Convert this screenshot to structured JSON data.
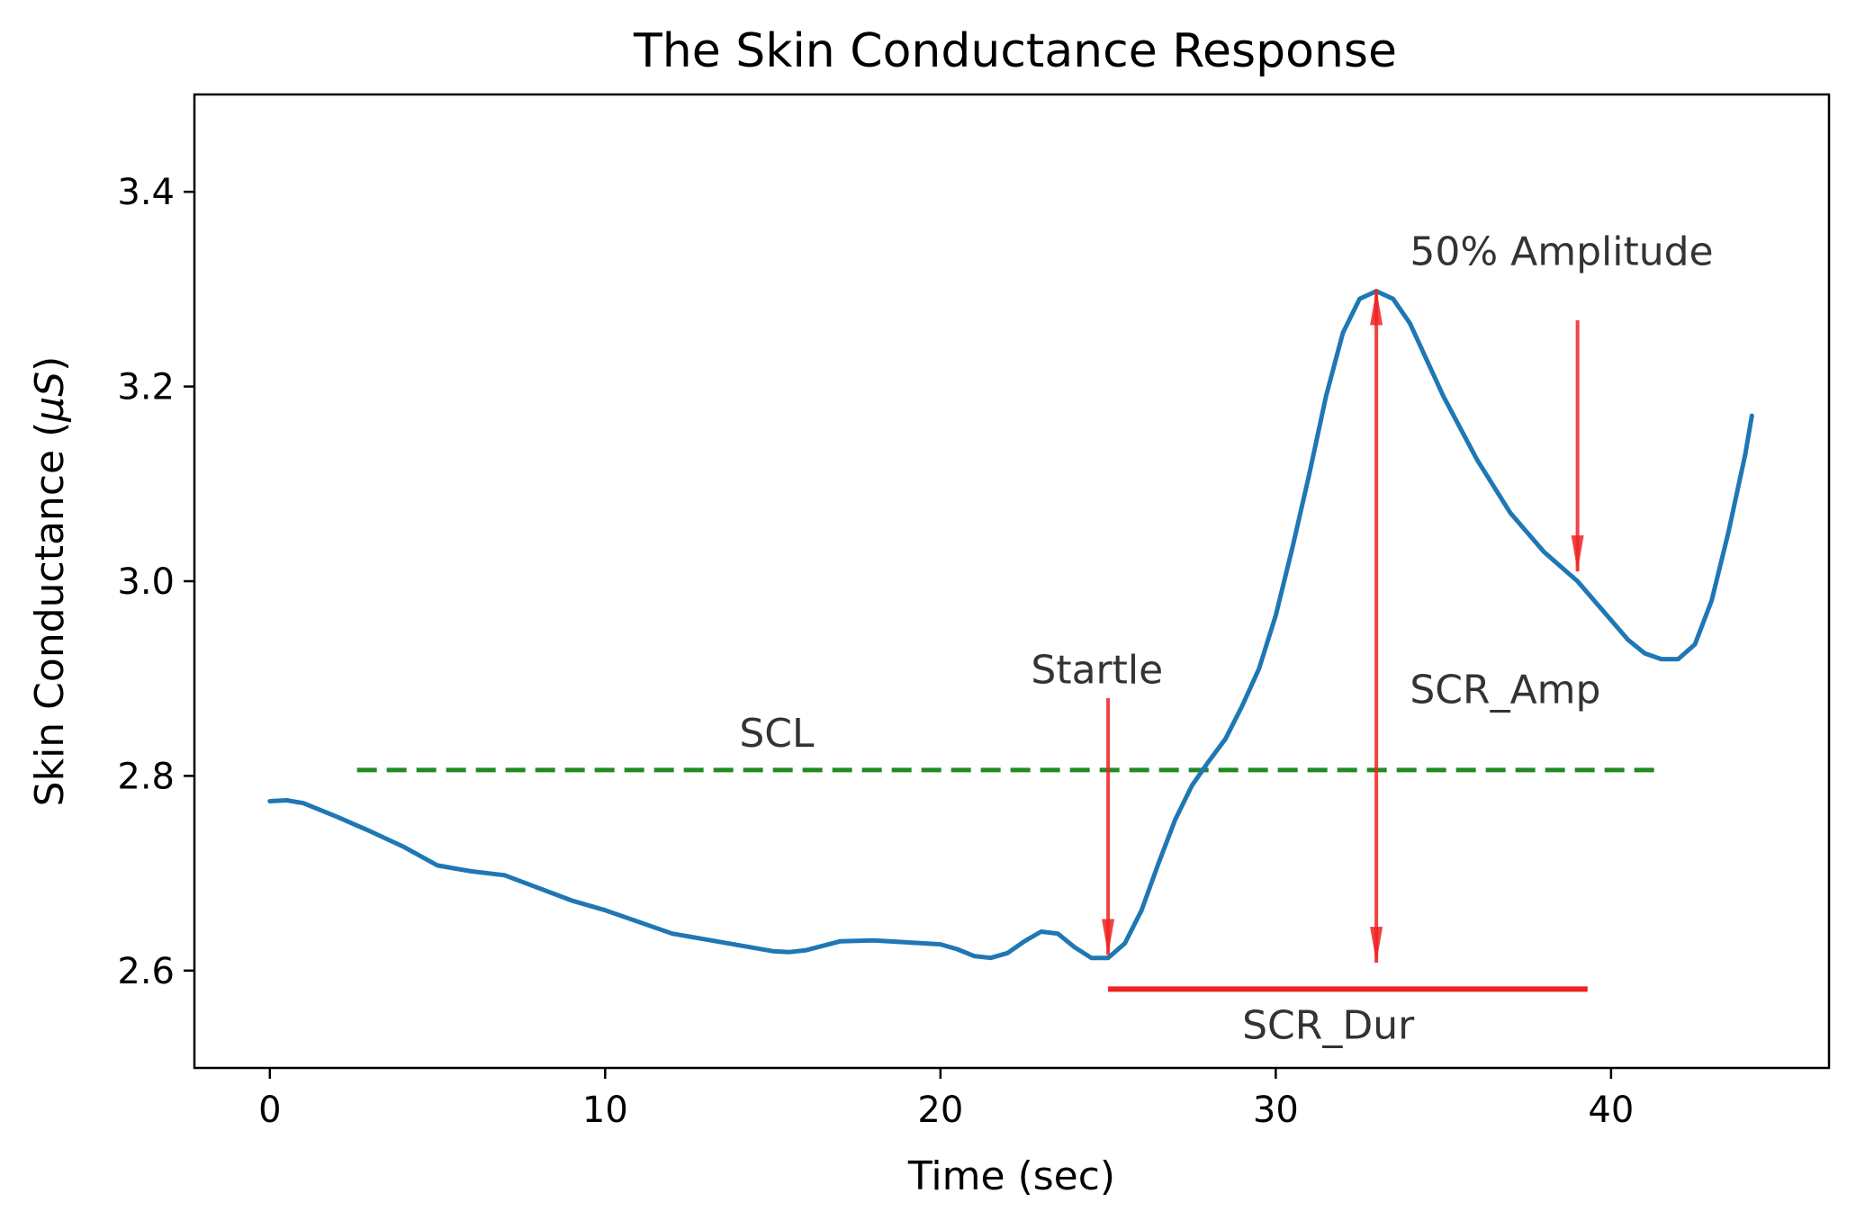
{
  "chart_data": {
    "type": "line",
    "title": "The Skin Conductance Response",
    "xlabel": "Time (sec)",
    "ylabel_prefix": "Skin Conductance (",
    "ylabel_unit": "μS",
    "ylabel_suffix": ")",
    "xlim": [
      -2.25,
      46.5
    ],
    "ylim": [
      2.5,
      3.5
    ],
    "xticks": [
      0,
      10,
      20,
      30,
      40
    ],
    "xtick_labels": [
      "0",
      "10",
      "20",
      "30",
      "40"
    ],
    "yticks": [
      2.6,
      2.8,
      3.0,
      3.2,
      3.4
    ],
    "ytick_labels": [
      "2.6",
      "2.8",
      "3.0",
      "3.2",
      "3.4"
    ],
    "grid": false,
    "series": [
      {
        "name": "skin conductance",
        "color": "#1f77b4",
        "x": [
          0,
          0.5,
          1,
          2,
          3,
          4,
          5,
          6,
          7,
          8,
          9,
          10,
          11,
          12,
          13,
          14,
          15,
          15.5,
          16,
          17,
          18,
          19,
          20,
          20.5,
          21,
          21.5,
          22,
          22.5,
          23,
          23.5,
          24,
          24.5,
          25,
          25.5,
          26,
          26.5,
          27,
          27.5,
          28,
          28.5,
          29,
          29.5,
          30,
          30.5,
          31,
          31.5,
          32,
          32.5,
          33,
          33.5,
          34,
          35,
          36,
          37,
          38,
          38.5,
          39,
          39.5,
          40,
          40.5,
          41,
          41.5,
          42,
          42.5,
          43,
          43.5,
          44,
          44.2
        ],
        "y": [
          2.774,
          2.775,
          2.772,
          2.758,
          2.743,
          2.727,
          2.708,
          2.702,
          2.698,
          2.685,
          2.672,
          2.662,
          2.65,
          2.638,
          2.632,
          2.626,
          2.62,
          2.619,
          2.621,
          2.63,
          2.631,
          2.629,
          2.627,
          2.622,
          2.615,
          2.613,
          2.618,
          2.63,
          2.64,
          2.638,
          2.624,
          2.613,
          2.613,
          2.628,
          2.662,
          2.71,
          2.755,
          2.79,
          2.815,
          2.838,
          2.872,
          2.91,
          2.965,
          3.035,
          3.11,
          3.19,
          3.255,
          3.29,
          3.298,
          3.29,
          3.265,
          3.19,
          3.125,
          3.07,
          3.03,
          3.015,
          3.0,
          2.98,
          2.96,
          2.94,
          2.926,
          2.92,
          2.92,
          2.935,
          2.98,
          3.05,
          3.13,
          3.17
        ]
      }
    ],
    "scl": {
      "label": "SCL",
      "y": 2.806,
      "x_start": 2.6,
      "x_end": 41.5,
      "color": "#228b22"
    },
    "annotations": [
      {
        "text": "Startle",
        "x": 22.7,
        "y": 2.895
      },
      {
        "text": "SCL",
        "x": 14.0,
        "y": 2.83
      },
      {
        "text": "50% Amplitude",
        "x": 34.0,
        "y": 3.325
      },
      {
        "text": "SCR_Amp",
        "x": 34.0,
        "y": 2.875
      },
      {
        "text": "SCR_Dur",
        "x": 29.0,
        "y": 2.53
      }
    ],
    "arrows": [
      {
        "name": "startle-arrow",
        "x": 25.0,
        "y_from": 2.88,
        "y_to": 2.616,
        "heads": "end"
      },
      {
        "name": "scr-amp-arrow",
        "x": 33.0,
        "y_from": 2.608,
        "y_to": 3.3,
        "heads": "both"
      },
      {
        "name": "half-amplitude-arrow",
        "x": 39.0,
        "y_from": 3.268,
        "y_to": 3.01,
        "heads": "end"
      }
    ],
    "duration_bar": {
      "x_start": 25.0,
      "x_end": 39.3,
      "y": 2.581,
      "color": "#ee2222"
    },
    "annotation_color": "#ee2222"
  }
}
